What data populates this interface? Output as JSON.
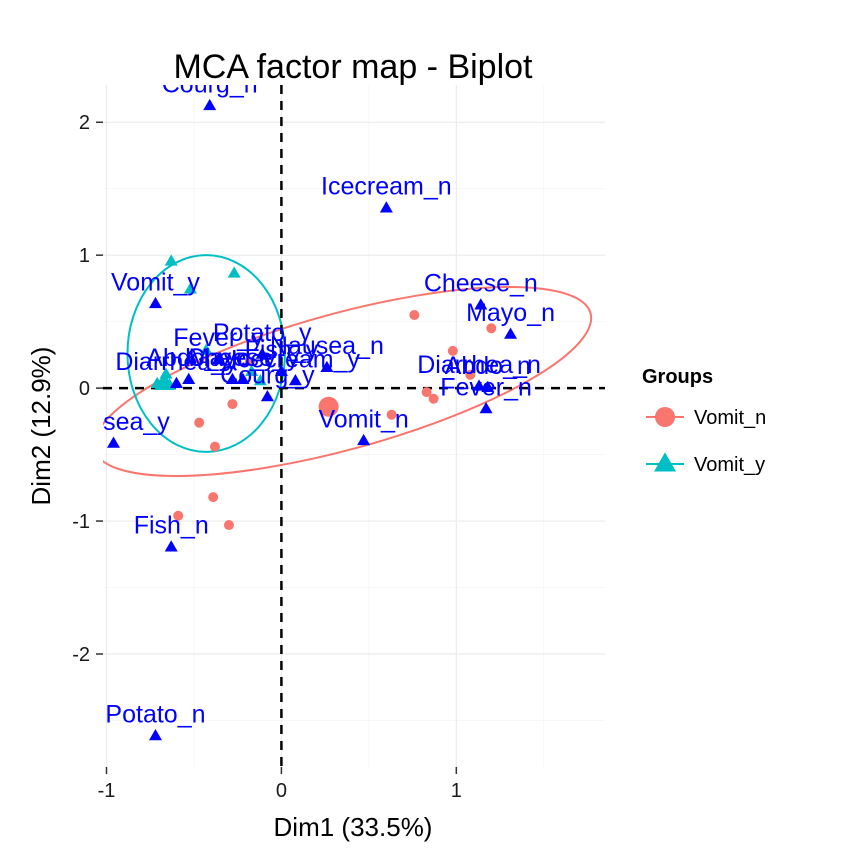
{
  "chart_data": {
    "type": "scatter",
    "title": "MCA factor map - Biplot",
    "xlabel": "Dim1 (33.5%)",
    "ylabel": "Dim2 (12.9%)",
    "xlim": [
      -1.02,
      1.85
    ],
    "ylim": [
      -2.85,
      2.28
    ],
    "xticks": [
      -1,
      0,
      1
    ],
    "yticks": [
      -2,
      -1,
      0,
      1,
      2
    ],
    "grid": true,
    "legend": {
      "title": "Groups",
      "position": "right",
      "items": [
        {
          "label": "Vomit_n",
          "color": "#F8766D",
          "shape": "circle"
        },
        {
          "label": "Vomit_y",
          "color": "#00BFC4",
          "shape": "triangle"
        }
      ]
    },
    "reference_lines": {
      "x": 0,
      "y": 0,
      "style": "dashed"
    },
    "series": [
      {
        "name": "Vomit_n",
        "color": "#F8766D",
        "shape": "circle",
        "points": [
          {
            "x": 0.76,
            "y": 0.55
          },
          {
            "x": 1.2,
            "y": 0.45
          },
          {
            "x": 0.98,
            "y": 0.28
          },
          {
            "x": 1.08,
            "y": 0.1
          },
          {
            "x": 0.83,
            "y": -0.03
          },
          {
            "x": 0.87,
            "y": -0.08
          },
          {
            "x": 0.63,
            "y": -0.2
          },
          {
            "x": -0.47,
            "y": -0.26
          },
          {
            "x": -0.38,
            "y": -0.44
          },
          {
            "x": -0.28,
            "y": -0.12
          },
          {
            "x": -0.39,
            "y": -0.82
          },
          {
            "x": -0.3,
            "y": -1.03
          },
          {
            "x": -0.59,
            "y": -0.96
          },
          {
            "x": -0.18,
            "y": 0.2
          }
        ],
        "centroid": {
          "x": 0.27,
          "y": -0.14
        },
        "ellipse": {
          "cx": 0.35,
          "cy": 0.05,
          "rx": 1.47,
          "ry": 0.51,
          "angle_deg": 15.4
        }
      },
      {
        "name": "Vomit_y",
        "color": "#00BFC4",
        "shape": "triangle",
        "points": [
          {
            "x": -0.63,
            "y": 0.95
          },
          {
            "x": -0.27,
            "y": 0.86
          },
          {
            "x": -0.52,
            "y": 0.74
          },
          {
            "x": -0.43,
            "y": 0.28
          },
          {
            "x": -0.66,
            "y": 0.1
          },
          {
            "x": -0.71,
            "y": 0.03
          },
          {
            "x": -0.64,
            "y": 0.02
          },
          {
            "x": -0.17,
            "y": 0.12
          },
          {
            "x": -0.12,
            "y": 0.05
          }
        ],
        "centroid": {
          "x": -0.67,
          "y": 0.03
        },
        "ellipse": {
          "cx": -0.43,
          "cy": 0.26,
          "rx": 0.45,
          "ry": 0.74,
          "angle_deg": 0
        }
      }
    ],
    "variables": [
      {
        "label": "Courg_n",
        "x": -0.41,
        "y": 2.12
      },
      {
        "label": "Icecream_n",
        "x": 0.6,
        "y": 1.35
      },
      {
        "label": "Cheese_n",
        "x": 1.14,
        "y": 0.62
      },
      {
        "label": "Mayo_n",
        "x": 1.31,
        "y": 0.4
      },
      {
        "label": "Vomit_y",
        "x": -0.72,
        "y": 0.63
      },
      {
        "label": "Potato_y",
        "x": -0.11,
        "y": 0.25
      },
      {
        "label": "Nausea_n",
        "x": 0.26,
        "y": 0.15
      },
      {
        "label": "Fever_y",
        "x": -0.36,
        "y": 0.21
      },
      {
        "label": "Diarrhea_y",
        "x": -0.6,
        "y": 0.03
      },
      {
        "label": "Abdo_y",
        "x": -0.53,
        "y": 0.06
      },
      {
        "label": "Mayo_y",
        "x": -0.28,
        "y": 0.06
      },
      {
        "label": "Cheese_y",
        "x": -0.22,
        "y": 0.06
      },
      {
        "label": "Fish_y",
        "x": 0.0,
        "y": 0.12
      },
      {
        "label": "Icecream_y",
        "x": 0.08,
        "y": 0.05
      },
      {
        "label": "Courg_y",
        "x": -0.08,
        "y": -0.07
      },
      {
        "label": "Vomit_n",
        "x": 0.47,
        "y": -0.4
      },
      {
        "label": "Diarrhea_n",
        "x": 1.13,
        "y": 0.01
      },
      {
        "label": "Abdo_n",
        "x": 1.18,
        "y": 0.0
      },
      {
        "label": "Fever_n",
        "x": 1.17,
        "y": -0.16
      },
      {
        "label": "Nausea_y",
        "x": -0.96,
        "y": -0.42
      },
      {
        "label": "Fish_n",
        "x": -0.63,
        "y": -1.2
      },
      {
        "label": "Potato_n",
        "x": -0.72,
        "y": -2.62
      }
    ]
  }
}
